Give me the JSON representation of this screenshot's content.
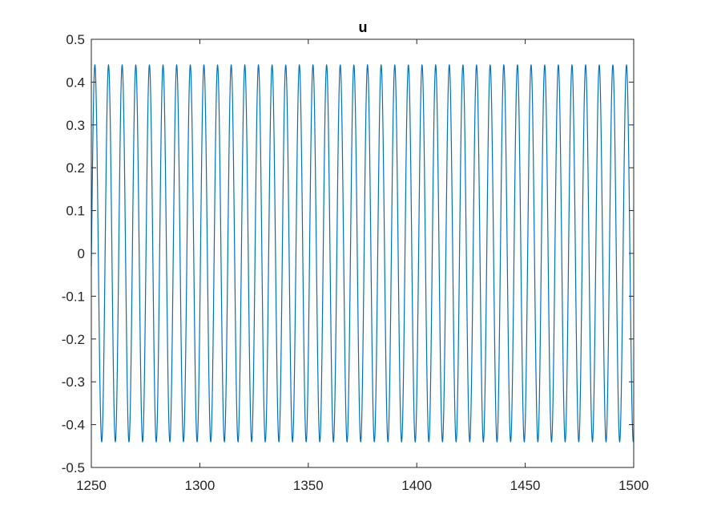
{
  "chart_data": {
    "type": "line",
    "title": "u",
    "xlabel": "",
    "ylabel": "",
    "xlim": [
      1250,
      1500
    ],
    "ylim": [
      -0.5,
      0.5
    ],
    "xticks": [
      1250,
      1300,
      1350,
      1400,
      1450,
      1500
    ],
    "yticks": [
      -0.5,
      -0.4,
      -0.3,
      -0.2,
      -0.1,
      0,
      0.1,
      0.2,
      0.3,
      0.4,
      0.5
    ],
    "xtick_labels": [
      "1250",
      "1300",
      "1350",
      "1400",
      "1450",
      "1500"
    ],
    "ytick_labels": [
      "-0.5",
      "-0.4",
      "-0.3",
      "-0.2",
      "-0.1",
      "0",
      "0.1",
      "0.2",
      "0.3",
      "0.4",
      "0.5"
    ],
    "grid": false,
    "series": [
      {
        "color": "#0072BD",
        "function": "sine",
        "amplitude": 0.44,
        "period": 6.283,
        "x_start": 1250,
        "x_end": 1500,
        "value_at_start": -0.03
      }
    ]
  }
}
